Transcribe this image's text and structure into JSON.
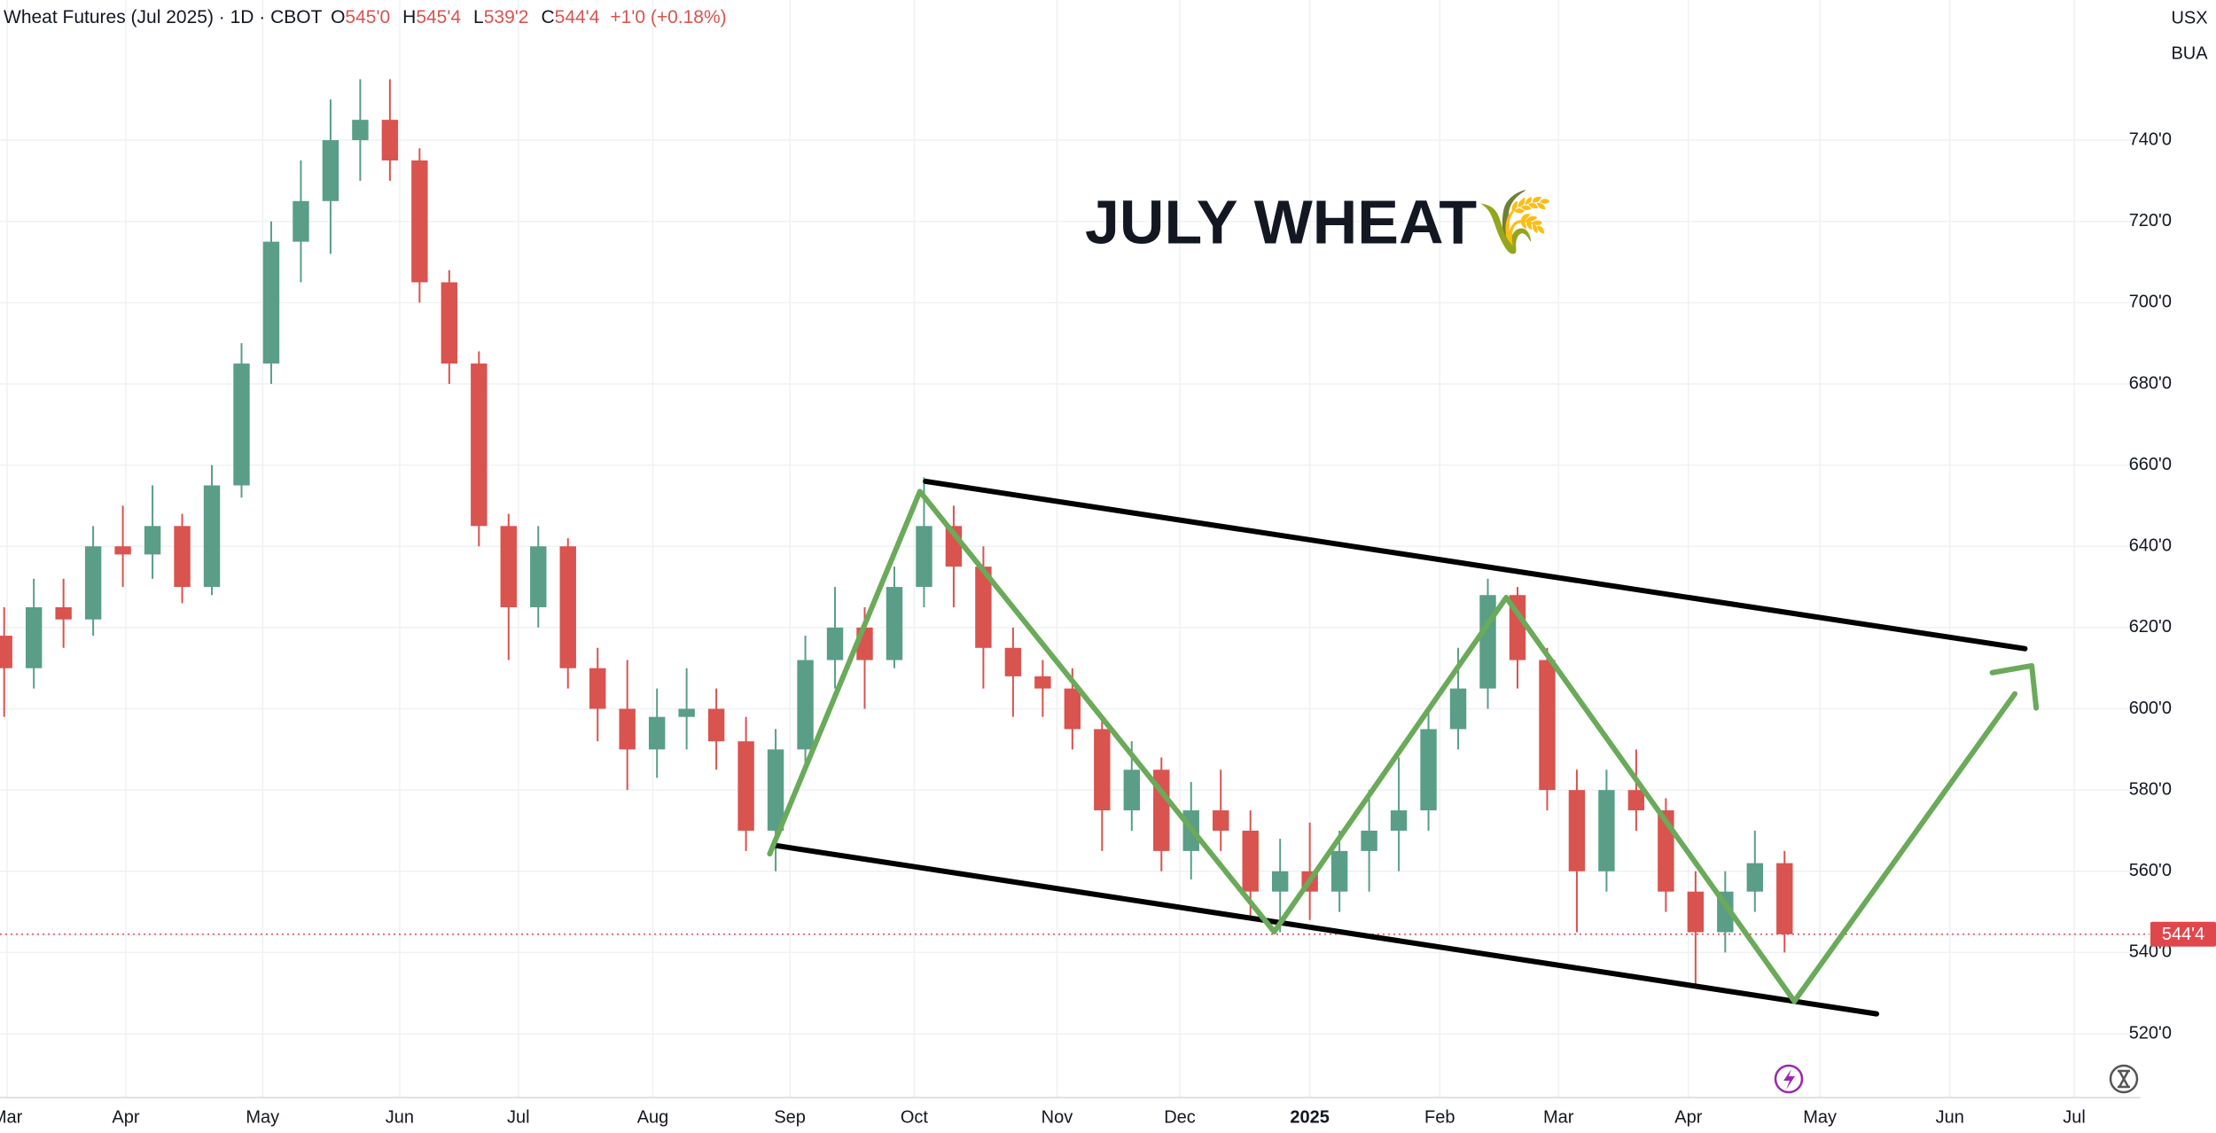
{
  "chart_data": {
    "type": "candlestick",
    "title": "JULY WHEAT🌾",
    "header": {
      "symbol": "Wheat Futures (Jul 2025) · 1D · CBOT",
      "fields": [
        {
          "key": "O",
          "value": "545'0"
        },
        {
          "key": "H",
          "value": "545'4"
        },
        {
          "key": "L",
          "value": "539'2"
        },
        {
          "key": "C",
          "value": "544'4"
        }
      ],
      "change": "+1'0 (+0.18%)"
    },
    "units": [
      "USX",
      "BUA"
    ],
    "up_color": "#5a9e88",
    "down_color": "#d9534f",
    "open": [
      618,
      610,
      625,
      622,
      640,
      638,
      645,
      630,
      655,
      685,
      715,
      725,
      740,
      745,
      735,
      705,
      685,
      645,
      625,
      640,
      610,
      600,
      590,
      598,
      600,
      592,
      570,
      590,
      612,
      620,
      612,
      630,
      645,
      635,
      615,
      608,
      605,
      595,
      575,
      585,
      565,
      575,
      570,
      555,
      560,
      555,
      565,
      570,
      575,
      595,
      605,
      628,
      612,
      580,
      560,
      580,
      575,
      555,
      545,
      555,
      562
    ],
    "high": [
      625,
      632,
      632,
      645,
      650,
      655,
      648,
      660,
      690,
      720,
      735,
      750,
      755,
      755,
      738,
      708,
      688,
      648,
      645,
      642,
      615,
      612,
      605,
      610,
      605,
      598,
      595,
      618,
      630,
      625,
      635,
      657,
      650,
      640,
      620,
      612,
      610,
      598,
      592,
      588,
      582,
      585,
      575,
      568,
      572,
      570,
      580,
      588,
      600,
      615,
      632,
      630,
      615,
      585,
      585,
      590,
      578,
      560,
      560,
      570,
      565
    ],
    "low": [
      598,
      605,
      615,
      618,
      630,
      632,
      626,
      628,
      652,
      680,
      705,
      712,
      730,
      730,
      700,
      680,
      640,
      612,
      620,
      605,
      592,
      580,
      583,
      590,
      585,
      565,
      560,
      585,
      605,
      600,
      610,
      625,
      625,
      605,
      598,
      598,
      590,
      565,
      570,
      560,
      558,
      565,
      548,
      545,
      548,
      550,
      555,
      560,
      570,
      590,
      600,
      605,
      575,
      545,
      555,
      570,
      550,
      532,
      540,
      550,
      540
    ],
    "close": [
      610,
      625,
      622,
      640,
      638,
      645,
      630,
      655,
      685,
      715,
      725,
      740,
      745,
      735,
      705,
      685,
      645,
      625,
      640,
      610,
      600,
      590,
      598,
      600,
      592,
      570,
      590,
      612,
      620,
      612,
      630,
      645,
      635,
      615,
      608,
      605,
      595,
      575,
      585,
      565,
      575,
      570,
      555,
      560,
      555,
      565,
      570,
      575,
      595,
      605,
      628,
      612,
      580,
      560,
      580,
      575,
      555,
      545,
      555,
      562,
      544.5
    ],
    "xlim": [
      -0.14,
      72.0
    ],
    "xticks": [
      {
        "value": 0.1,
        "label": "Mar"
      },
      {
        "value": 4.1,
        "label": "Apr"
      },
      {
        "value": 8.71,
        "label": "May"
      },
      {
        "value": 13.33,
        "label": "Jun"
      },
      {
        "value": 17.33,
        "label": "Jul"
      },
      {
        "value": 21.86,
        "label": "Aug"
      },
      {
        "value": 26.48,
        "label": "Sep"
      },
      {
        "value": 30.67,
        "label": "Oct"
      },
      {
        "value": 35.48,
        "label": "Nov"
      },
      {
        "value": 39.62,
        "label": "Dec"
      },
      {
        "value": 44.0,
        "label": "2025"
      },
      {
        "value": 48.38,
        "label": "Feb"
      },
      {
        "value": 52.38,
        "label": "Mar"
      },
      {
        "value": 56.76,
        "label": "Apr"
      },
      {
        "value": 61.19,
        "label": "May"
      },
      {
        "value": 65.57,
        "label": "Jun"
      },
      {
        "value": 69.76,
        "label": "Jul"
      }
    ],
    "ylim": [
      504.3,
      774.5
    ],
    "yticks": [
      {
        "value": 520,
        "label": "520'0"
      },
      {
        "value": 540,
        "label": "540'0"
      },
      {
        "value": 560,
        "label": "560'0"
      },
      {
        "value": 580,
        "label": "580'0"
      },
      {
        "value": 600,
        "label": "600'0"
      },
      {
        "value": 620,
        "label": "620'0"
      },
      {
        "value": 640,
        "label": "640'0"
      },
      {
        "value": 660,
        "label": "660'0"
      },
      {
        "value": 680,
        "label": "680'0"
      },
      {
        "value": 700,
        "label": "700'0"
      },
      {
        "value": 720,
        "label": "720'0"
      },
      {
        "value": 740,
        "label": "740'0"
      }
    ],
    "grid": true,
    "last_price": {
      "value": 544.5,
      "label": "544'4",
      "color": "#e0474c"
    },
    "lines": [
      {
        "color": "#000000",
        "x": [
          31.05,
          68.1
        ],
        "y": [
          656,
          614.8
        ]
      },
      {
        "color": "#000000",
        "x": [
          25.95,
          63.1
        ],
        "y": [
          566.4,
          524.9
        ]
      },
      {
        "color": "#6aaa5a",
        "x": [
          25.8,
          30.86,
          42.8,
          50.62,
          60.33,
          67.76
        ],
        "y": [
          564.3,
          653.5,
          545.1,
          627.4,
          528.0,
          603.7
        ]
      },
      {
        "color": "#6aaa5a",
        "x": [
          67.0,
          68.33,
          68.48
        ],
        "y": [
          608.9,
          610.6,
          600.2
        ]
      }
    ]
  }
}
